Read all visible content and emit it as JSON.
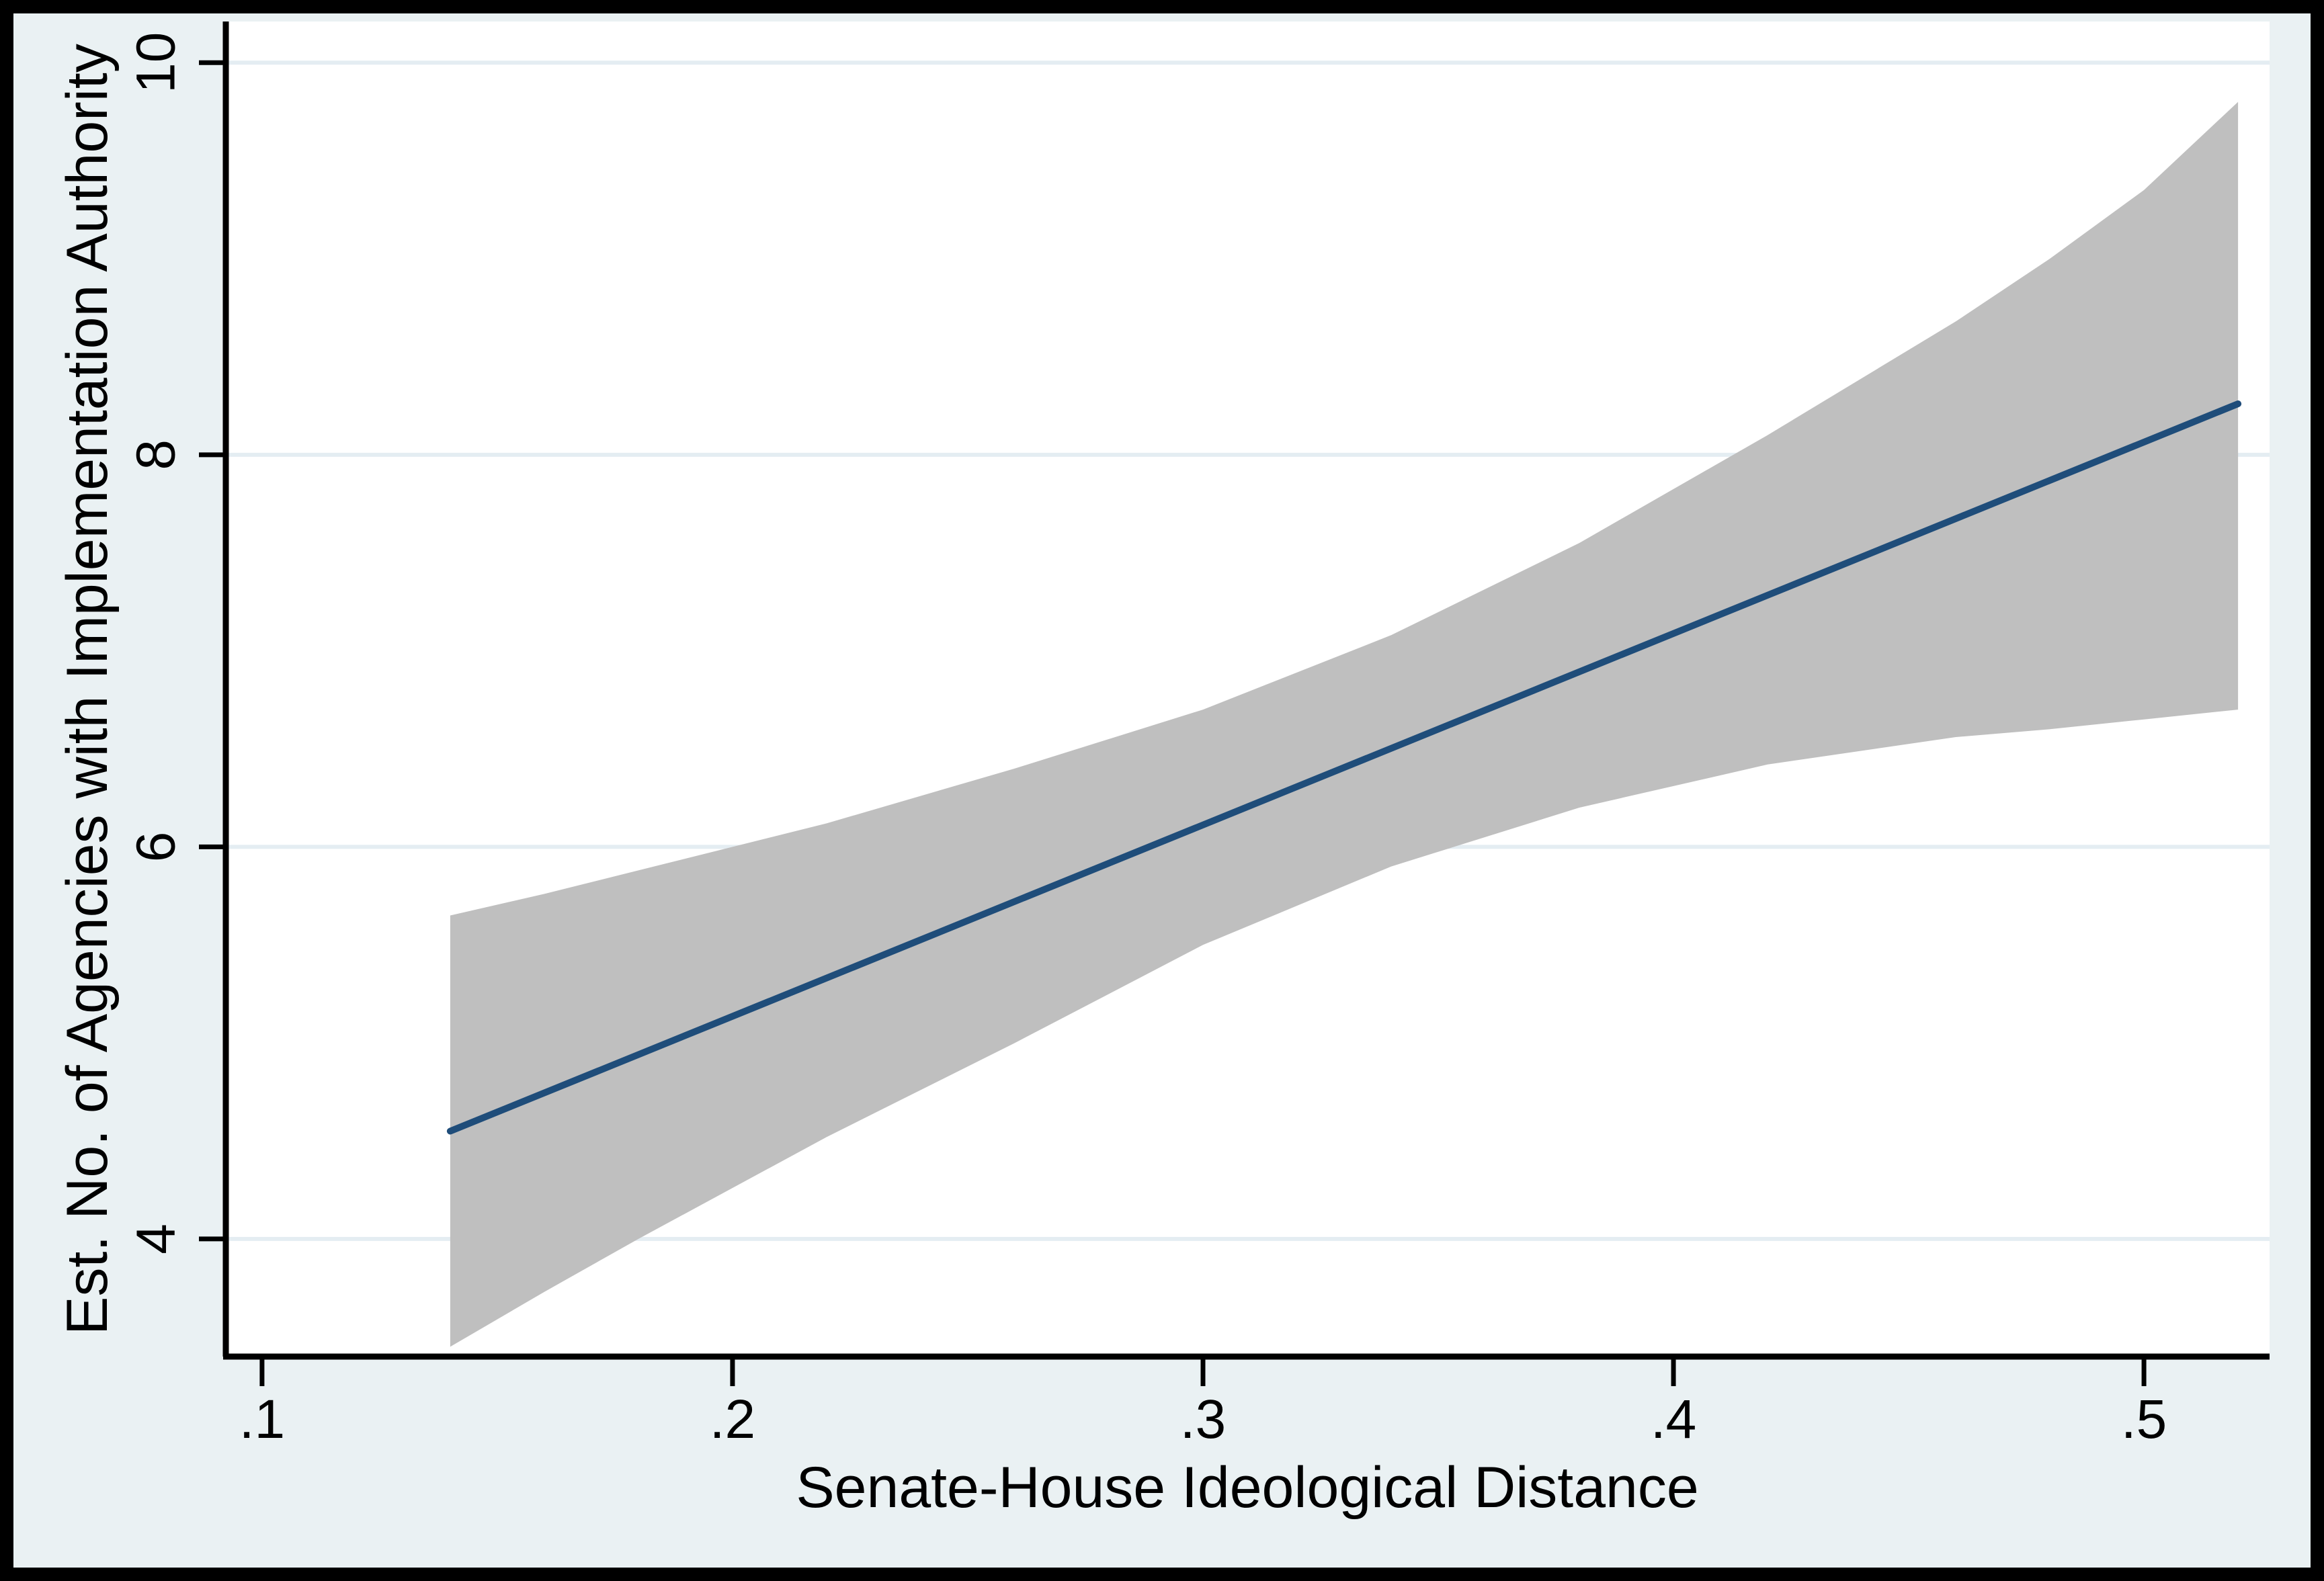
{
  "figure": {
    "background_color": "#eaf1f3",
    "plot_background_color": "#ffffff",
    "border_color": "#000000",
    "gridline_color": "#e4edf2",
    "axis_color": "#000000"
  },
  "chart_data": {
    "type": "line",
    "title": "",
    "xlabel": "Senate-House Ideological Distance",
    "ylabel": "Est. No. of Agencies with Implementation Authority",
    "x_ticks": [
      ".1",
      ".2",
      ".3",
      ".4",
      ".5"
    ],
    "x_tick_values": [
      0.1,
      0.2,
      0.3,
      0.4,
      0.5
    ],
    "y_ticks": [
      "4",
      "6",
      "8",
      "10"
    ],
    "y_tick_values": [
      4,
      6,
      8,
      10
    ],
    "xlim": [
      0.0923,
      0.5267
    ],
    "ylim": [
      3.4,
      10.21
    ],
    "grid": "horizontal",
    "legend": "none",
    "series": [
      {
        "name": "linear-prediction",
        "type": "line",
        "color": "#1f4d7a",
        "x": [
          0.14,
          0.52
        ],
        "y": [
          4.55,
          8.26
        ]
      },
      {
        "name": "confidence-band-95pct",
        "type": "area",
        "color": "#bfbfbf",
        "x": [
          0.14,
          0.16,
          0.18,
          0.22,
          0.26,
          0.3,
          0.34,
          0.38,
          0.42,
          0.46,
          0.48,
          0.5,
          0.52
        ],
        "upper": [
          5.65,
          5.76,
          5.88,
          6.12,
          6.4,
          6.7,
          7.08,
          7.55,
          8.1,
          8.68,
          9.0,
          9.35,
          9.8
        ],
        "lower": [
          3.45,
          3.73,
          4.0,
          4.52,
          5.0,
          5.5,
          5.9,
          6.2,
          6.42,
          6.56,
          6.6,
          6.65,
          6.7
        ]
      }
    ]
  }
}
